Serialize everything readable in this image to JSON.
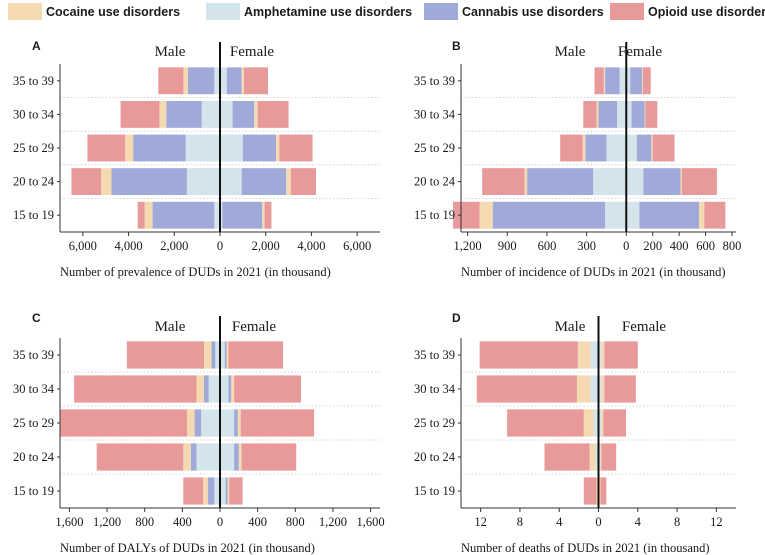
{
  "legend": [
    {
      "key": "cocaine",
      "label": "Cocaine use disorders",
      "color": "#f5d9b0"
    },
    {
      "key": "amphetamine",
      "label": "Amphetamine use disorders",
      "color": "#d3e4ea"
    },
    {
      "key": "cannabis",
      "label": "Cannabis use disorders",
      "color": "#9faad9"
    },
    {
      "key": "opioid",
      "label": "Opioid use disorders",
      "color": "#e8999a"
    }
  ],
  "sex_labels": {
    "male": "Male",
    "female": "Female"
  },
  "chart_data": [
    {
      "panel": "A",
      "type": "bar",
      "orientation": "horizontal-butterfly",
      "xlabel": "Number of prevalence of DUDs in 2021 (in thousand)",
      "xlim": [
        -7000,
        7000
      ],
      "ticks": [
        -6000,
        -4000,
        -2000,
        0,
        2000,
        4000,
        6000
      ],
      "tick_labels": [
        "6,000",
        "4,000",
        "2,000",
        "0",
        "2,000",
        "4,000",
        "6,000"
      ],
      "categories": [
        "35 to 39",
        "30 to 34",
        "25 to 29",
        "20 to 24",
        "15 to 19"
      ],
      "stack_order": [
        "amphetamine",
        "cannabis",
        "cocaine",
        "opioid"
      ],
      "male": {
        "amphetamine": [
          250,
          800,
          1500,
          1450,
          250
        ],
        "cannabis": [
          1150,
          1550,
          2300,
          3300,
          2700
        ],
        "cocaine": [
          200,
          300,
          350,
          450,
          350
        ],
        "opioid": [
          1100,
          1700,
          1650,
          1300,
          300
        ]
      },
      "female": {
        "amphetamine": [
          300,
          550,
          1000,
          950,
          100
        ],
        "cannabis": [
          650,
          950,
          1450,
          1950,
          1750
        ],
        "cocaine": [
          100,
          150,
          150,
          200,
          100
        ],
        "opioid": [
          1050,
          1350,
          1450,
          1100,
          300
        ]
      }
    },
    {
      "panel": "B",
      "type": "bar",
      "orientation": "horizontal-butterfly",
      "xlabel": "Number of incidence of DUDs in 2021 (in thousand)",
      "xlim": [
        -1250,
        830
      ],
      "ticks": [
        -1200,
        -900,
        -600,
        -300,
        0,
        200,
        400,
        600,
        800
      ],
      "tick_labels": [
        "1,200",
        "900",
        "600",
        "300",
        "0",
        "200",
        "400",
        "600",
        "800"
      ],
      "categories": [
        "35 to 39",
        "30 to 34",
        "25 to 29",
        "20 to 24",
        "15 to 19"
      ],
      "stack_order": [
        "amphetamine",
        "cannabis",
        "cocaine",
        "opioid"
      ],
      "male": {
        "amphetamine": [
          50,
          70,
          150,
          250,
          160
        ],
        "cannabis": [
          110,
          140,
          160,
          500,
          850
        ],
        "cocaine": [
          10,
          15,
          20,
          20,
          100
        ],
        "opioid": [
          70,
          100,
          170,
          320,
          200
        ]
      },
      "female": {
        "amphetamine": [
          30,
          40,
          80,
          130,
          100
        ],
        "cannabis": [
          90,
          100,
          110,
          280,
          450
        ],
        "cocaine": [
          5,
          5,
          10,
          10,
          40
        ],
        "opioid": [
          60,
          90,
          165,
          265,
          160
        ]
      }
    },
    {
      "panel": "C",
      "type": "bar",
      "orientation": "horizontal-butterfly",
      "xlabel": "Number of DALYs of DUDs in 2021 (in thousand)",
      "xlim": [
        -1700,
        1700
      ],
      "ticks": [
        -1600,
        -1200,
        -800,
        -400,
        0,
        400,
        800,
        1200,
        1600
      ],
      "tick_labels": [
        "1,600",
        "1,200",
        "800",
        "400",
        "0",
        "400",
        "800",
        "1,200",
        "1,600"
      ],
      "categories": [
        "35 to 39",
        "30 to 34",
        "25 to 29",
        "20 to 24",
        "15 to 19"
      ],
      "stack_order": [
        "amphetamine",
        "cannabis",
        "cocaine",
        "opioid"
      ],
      "male": {
        "amphetamine": [
          50,
          120,
          200,
          250,
          60
        ],
        "cannabis": [
          40,
          50,
          70,
          60,
          70
        ],
        "cocaine": [
          80,
          80,
          80,
          80,
          50
        ],
        "opioid": [
          820,
          1300,
          1350,
          920,
          210
        ]
      },
      "female": {
        "amphetamine": [
          50,
          90,
          150,
          150,
          60
        ],
        "cannabis": [
          20,
          30,
          40,
          50,
          20
        ],
        "cocaine": [
          20,
          30,
          30,
          30,
          20
        ],
        "opioid": [
          580,
          710,
          780,
          580,
          140
        ]
      }
    },
    {
      "panel": "D",
      "type": "bar",
      "orientation": "horizontal-butterfly",
      "xlabel": "Number of deaths of DUDs in 2021 (in thousand)",
      "xlim": [
        -14,
        14
      ],
      "ticks": [
        -12,
        -8,
        -4,
        0,
        4,
        8,
        12
      ],
      "tick_labels": [
        "12",
        "8",
        "4",
        "0",
        "4",
        "8",
        "12"
      ],
      "categories": [
        "35 to 39",
        "30 to 34",
        "25 to 29",
        "20 to 24",
        "15 to 19"
      ],
      "stack_order": [
        "amphetamine",
        "cannabis",
        "cocaine",
        "opioid"
      ],
      "male": {
        "amphetamine": [
          0.8,
          0.8,
          0.5,
          0.3,
          0.1
        ],
        "cannabis": [
          0,
          0,
          0,
          0,
          0
        ],
        "cocaine": [
          1.3,
          1.4,
          1.0,
          0.6,
          0.1
        ],
        "opioid": [
          10.0,
          10.2,
          7.8,
          4.6,
          1.3
        ]
      },
      "female": {
        "amphetamine": [
          0.3,
          0.3,
          0.3,
          0.2,
          0.1
        ],
        "cannabis": [
          0,
          0,
          0,
          0,
          0
        ],
        "cocaine": [
          0.3,
          0.3,
          0.2,
          0.1,
          0.1
        ],
        "opioid": [
          3.4,
          3.2,
          2.3,
          1.5,
          0.6
        ]
      }
    }
  ]
}
